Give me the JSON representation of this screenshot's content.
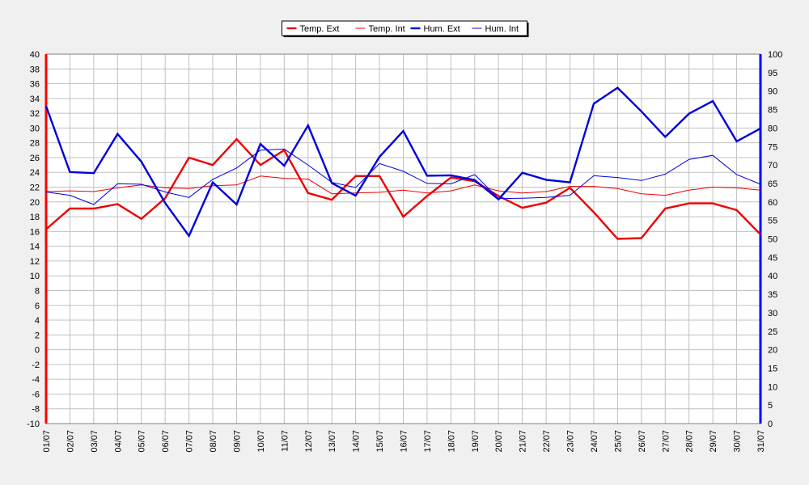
{
  "chart_data": {
    "type": "line",
    "title": "",
    "grid": true,
    "legend_position": "top-center",
    "categories": [
      "01/07",
      "02/07",
      "03/07",
      "04/07",
      "05/07",
      "06/07",
      "07/07",
      "08/07",
      "09/07",
      "10/07",
      "11/07",
      "12/07",
      "13/07",
      "14/07",
      "15/07",
      "16/07",
      "17/07",
      "18/07",
      "19/07",
      "20/07",
      "21/07",
      "22/07",
      "23/07",
      "24/07",
      "25/07",
      "26/07",
      "27/07",
      "28/07",
      "29/07",
      "30/07",
      "31/07"
    ],
    "axes": {
      "left": {
        "min": -10,
        "max": 40,
        "step": 2,
        "color": "#ff0000"
      },
      "right": {
        "min": 0,
        "max": 100,
        "step": 5,
        "color": "#0000ff"
      }
    },
    "series": [
      {
        "name": "Temp. Ext",
        "axis": "left",
        "color": "#ee0000",
        "weight": "thick",
        "values": [
          16.3,
          19.1,
          19.1,
          19.7,
          17.7,
          20.5,
          26.0,
          25.0,
          28.5,
          25.0,
          27.0,
          21.2,
          20.3,
          23.5,
          23.5,
          18.0,
          20.8,
          23.3,
          22.8,
          20.8,
          19.2,
          19.9,
          21.9,
          18.6,
          15.0,
          15.1,
          19.1,
          19.8,
          19.8,
          18.9,
          15.6
        ]
      },
      {
        "name": "Temp. Int",
        "axis": "left",
        "color": "#ee0000",
        "weight": "thin",
        "values": [
          21.4,
          21.5,
          21.4,
          21.9,
          22.3,
          21.9,
          21.8,
          22.2,
          22.3,
          23.5,
          23.2,
          23.1,
          21.1,
          21.2,
          21.3,
          21.6,
          21.2,
          21.5,
          22.3,
          21.5,
          21.2,
          21.4,
          22.1,
          22.1,
          21.8,
          21.1,
          20.9,
          21.6,
          22.0,
          21.9,
          21.6
        ]
      },
      {
        "name": "Hum. Ext",
        "axis": "right",
        "color": "#0000dd",
        "weight": "thick",
        "values": [
          85.9,
          68.1,
          67.8,
          78.4,
          70.9,
          59.7,
          50.8,
          65.3,
          59.3,
          75.7,
          69.8,
          80.7,
          65.1,
          61.7,
          72.2,
          79.2,
          67.1,
          67.2,
          65.9,
          60.7,
          67.9,
          66.0,
          65.3,
          86.6,
          90.9,
          84.5,
          77.6,
          83.9,
          87.3,
          76.4,
          79.9
        ]
      },
      {
        "name": "Hum. Int",
        "axis": "right",
        "color": "#0000dd",
        "weight": "thin",
        "values": [
          62.7,
          61.8,
          59.3,
          64.9,
          64.8,
          62.7,
          61.2,
          66.1,
          69.2,
          74.0,
          74.3,
          70.0,
          65.3,
          63.9,
          70.4,
          68.3,
          65.0,
          64.9,
          67.4,
          60.9,
          61.0,
          61.2,
          61.8,
          67.1,
          66.6,
          65.8,
          67.5,
          71.5,
          72.6,
          67.4,
          64.8
        ]
      }
    ]
  }
}
